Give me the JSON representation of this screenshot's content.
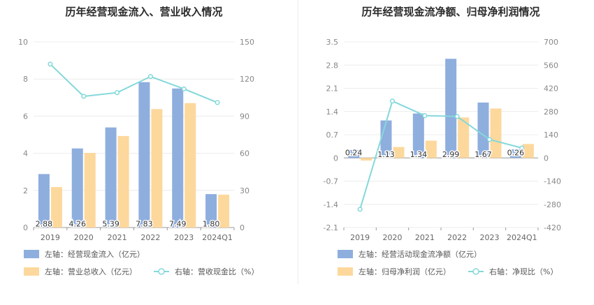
{
  "chart_data": [
    {
      "type": "bar",
      "title": "历年经营现金流入、营业收入情况",
      "categories": [
        "2019",
        "2020",
        "2021",
        "2022",
        "2023",
        "2024Q1"
      ],
      "left_axis": {
        "ylim": [
          0,
          10
        ],
        "ticks": [
          "0",
          "2",
          "4",
          "6",
          "8",
          "10"
        ]
      },
      "right_axis": {
        "ylim": [
          0,
          150
        ],
        "ticks": [
          "0",
          "30",
          "60",
          "90",
          "120",
          "150"
        ]
      },
      "series": [
        {
          "name": "左轴：经营现金流入（亿元）",
          "kind": "bar",
          "axis": "left",
          "color": "#8eaede",
          "values": [
            2.88,
            4.26,
            5.39,
            7.83,
            7.49,
            1.8
          ],
          "data_labels": [
            "2.88",
            "4.26",
            "5.39",
            "7.83",
            "7.49",
            "1.80"
          ]
        },
        {
          "name": "左轴：营业总收入（亿元）",
          "kind": "bar",
          "axis": "left",
          "color": "#fdd89c",
          "values": [
            2.18,
            4.02,
            4.93,
            6.38,
            6.7,
            1.77
          ]
        },
        {
          "name": "右轴：营收现金比（%）",
          "kind": "line",
          "axis": "right",
          "color": "#84d8da",
          "values": [
            132,
            106,
            109,
            122,
            112,
            101
          ]
        }
      ],
      "grid": true,
      "legend_position": "bottom"
    },
    {
      "type": "bar",
      "title": "历年经营现金流净额、归母净利润情况",
      "categories": [
        "2019",
        "2020",
        "2021",
        "2022",
        "2023",
        "2024Q1"
      ],
      "left_axis": {
        "ylim": [
          -2.1,
          3.5
        ],
        "ticks": [
          "-2.1",
          "-1.4",
          "-0.7",
          "0",
          "0.7",
          "1.4",
          "2.1",
          "2.8",
          "3.5"
        ]
      },
      "right_axis": {
        "ylim": [
          -420,
          700
        ],
        "ticks": [
          "-420",
          "-280",
          "-140",
          "0",
          "140",
          "280",
          "420",
          "560",
          "700"
        ]
      },
      "series": [
        {
          "name": "左轴：经营活动现金流净额（亿元）",
          "kind": "bar",
          "axis": "left",
          "color": "#8eaede",
          "values": [
            0.24,
            1.13,
            1.34,
            2.99,
            1.67,
            0.26
          ],
          "data_labels": [
            "0.24",
            "1.13",
            "1.34",
            "2.99",
            "1.67",
            "0.26"
          ]
        },
        {
          "name": "左轴：归母净利润（亿元）",
          "kind": "bar",
          "axis": "left",
          "color": "#fdd89c",
          "values": [
            -0.08,
            0.33,
            0.52,
            1.22,
            1.49,
            0.42
          ]
        },
        {
          "name": "右轴：净现比（%）",
          "kind": "line",
          "axis": "right",
          "color": "#84d8da",
          "values": [
            -310,
            343,
            255,
            250,
            111,
            60
          ]
        }
      ],
      "grid": true,
      "legend_position": "bottom"
    }
  ]
}
